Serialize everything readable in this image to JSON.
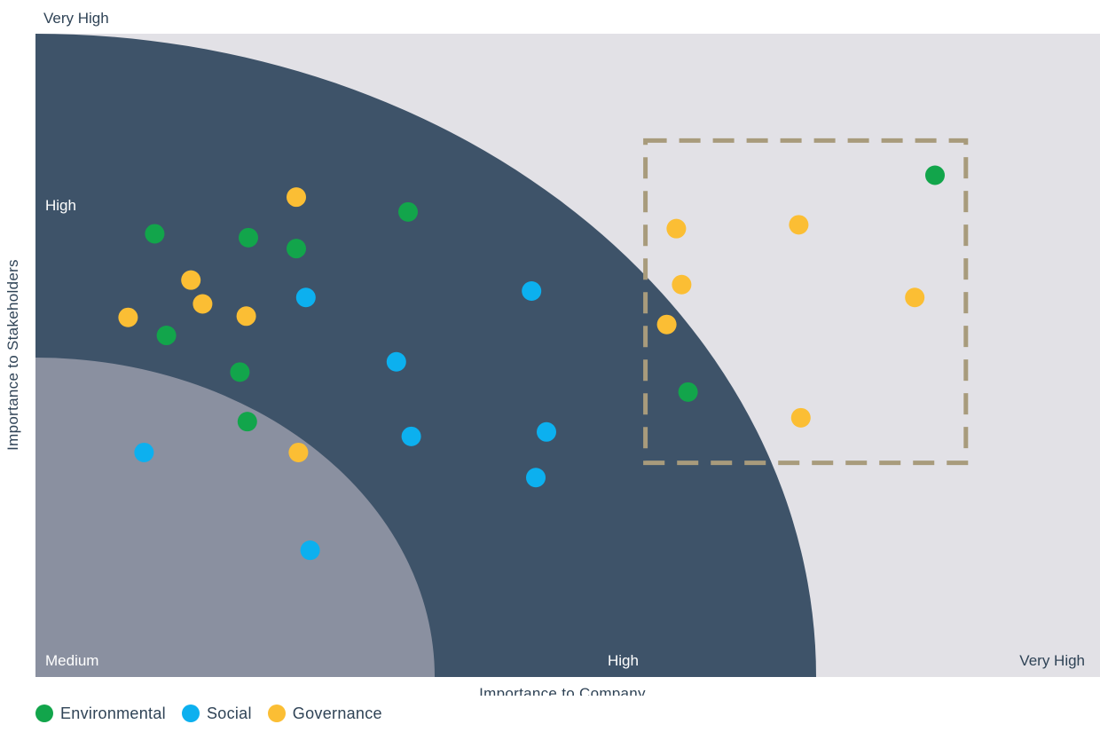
{
  "chart_data": {
    "type": "scatter",
    "title": "",
    "xlabel": "Importance to Company",
    "ylabel": "Importance to Stakeholders",
    "x_tick_labels": [
      "Medium",
      "High",
      "Very High"
    ],
    "y_tick_labels": [
      "High",
      "Very High"
    ],
    "xlim": [
      0,
      1
    ],
    "ylim": [
      0,
      1
    ],
    "grid": false,
    "legend_position": "bottom-left",
    "zones": [
      {
        "name": "Medium",
        "color": "#8a90a0"
      },
      {
        "name": "High",
        "color": "#3e5369"
      },
      {
        "name": "Very High",
        "color": "#e2e1e6"
      }
    ],
    "highlight_box": {
      "x": [
        0.573,
        0.874
      ],
      "y": [
        0.333,
        0.834
      ],
      "color": "#a89b7c",
      "style": "dashed"
    },
    "series": [
      {
        "name": "Environmental",
        "color": "#12a54b",
        "points": [
          {
            "x": 0.112,
            "y": 0.689
          },
          {
            "x": 0.2,
            "y": 0.683
          },
          {
            "x": 0.245,
            "y": 0.666
          },
          {
            "x": 0.35,
            "y": 0.723
          },
          {
            "x": 0.123,
            "y": 0.531
          },
          {
            "x": 0.192,
            "y": 0.474
          },
          {
            "x": 0.199,
            "y": 0.397
          },
          {
            "x": 0.613,
            "y": 0.443
          },
          {
            "x": 0.845,
            "y": 0.78
          }
        ]
      },
      {
        "name": "Social",
        "color": "#0cb0ef",
        "points": [
          {
            "x": 0.254,
            "y": 0.59
          },
          {
            "x": 0.466,
            "y": 0.6
          },
          {
            "x": 0.339,
            "y": 0.49
          },
          {
            "x": 0.102,
            "y": 0.349
          },
          {
            "x": 0.353,
            "y": 0.374
          },
          {
            "x": 0.48,
            "y": 0.381
          },
          {
            "x": 0.47,
            "y": 0.31
          },
          {
            "x": 0.258,
            "y": 0.197
          }
        ]
      },
      {
        "name": "Governance",
        "color": "#fbbe34",
        "points": [
          {
            "x": 0.245,
            "y": 0.746
          },
          {
            "x": 0.146,
            "y": 0.617
          },
          {
            "x": 0.157,
            "y": 0.58
          },
          {
            "x": 0.087,
            "y": 0.559
          },
          {
            "x": 0.198,
            "y": 0.561
          },
          {
            "x": 0.247,
            "y": 0.349
          },
          {
            "x": 0.602,
            "y": 0.697
          },
          {
            "x": 0.717,
            "y": 0.703
          },
          {
            "x": 0.607,
            "y": 0.61
          },
          {
            "x": 0.593,
            "y": 0.548
          },
          {
            "x": 0.826,
            "y": 0.59
          },
          {
            "x": 0.719,
            "y": 0.403
          }
        ]
      }
    ]
  }
}
